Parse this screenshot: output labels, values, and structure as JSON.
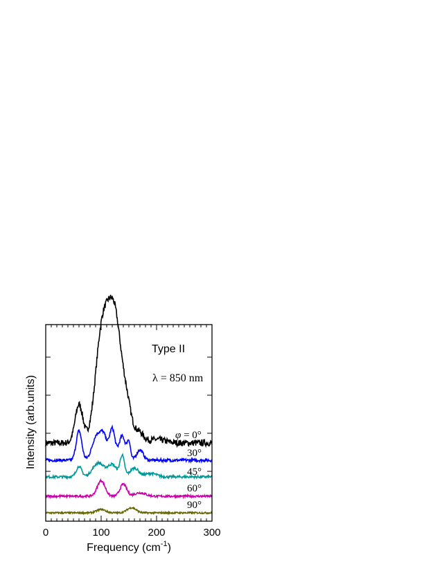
{
  "chart_data": {
    "type": "line",
    "xlabel": "Frequency (cm",
    "xlabel_sup": "-1",
    "xlabel_close": ")",
    "ylabel": "Intensity (arb.units)",
    "xlim": [
      0,
      300
    ],
    "xticks": [
      "0",
      "100",
      "200",
      "300"
    ],
    "y_tick_labels": false,
    "grid": false,
    "annotations": {
      "type_label": "Type II",
      "wavelength_label": "λ = 850 nm",
      "phi_symbol": "φ"
    },
    "series": [
      {
        "name": "= 0°",
        "color": "#000000",
        "baseline": 0,
        "peaks": [
          [
            60,
            7,
            22
          ],
          [
            98,
            10,
            24
          ],
          [
            112,
            16,
            58
          ],
          [
            128,
            12,
            38
          ],
          [
            148,
            8,
            14
          ],
          [
            168,
            8,
            6
          ],
          [
            200,
            15,
            2
          ]
        ]
      },
      {
        "name": "30°",
        "color": "#0000ff",
        "baseline": 0,
        "peaks": [
          [
            60,
            5,
            17
          ],
          [
            92,
            8,
            14
          ],
          [
            105,
            6,
            12
          ],
          [
            120,
            5,
            18
          ],
          [
            138,
            6,
            14
          ],
          [
            150,
            3,
            10
          ],
          [
            170,
            6,
            6
          ]
        ]
      },
      {
        "name": "45°",
        "color": "#009999",
        "baseline": 0,
        "peaks": [
          [
            60,
            5,
            6
          ],
          [
            95,
            10,
            8
          ],
          [
            120,
            8,
            7
          ],
          [
            138,
            4,
            12
          ],
          [
            160,
            8,
            5
          ],
          [
            190,
            10,
            2
          ]
        ]
      },
      {
        "name": "60°",
        "color": "#cc00aa",
        "baseline": 0,
        "peaks": [
          [
            100,
            7,
            9
          ],
          [
            140,
            6,
            7
          ],
          [
            170,
            10,
            2
          ]
        ]
      },
      {
        "name": "90°",
        "color": "#666600",
        "baseline": 0,
        "peaks": [
          [
            100,
            8,
            2
          ],
          [
            155,
            8,
            3
          ]
        ]
      }
    ]
  }
}
